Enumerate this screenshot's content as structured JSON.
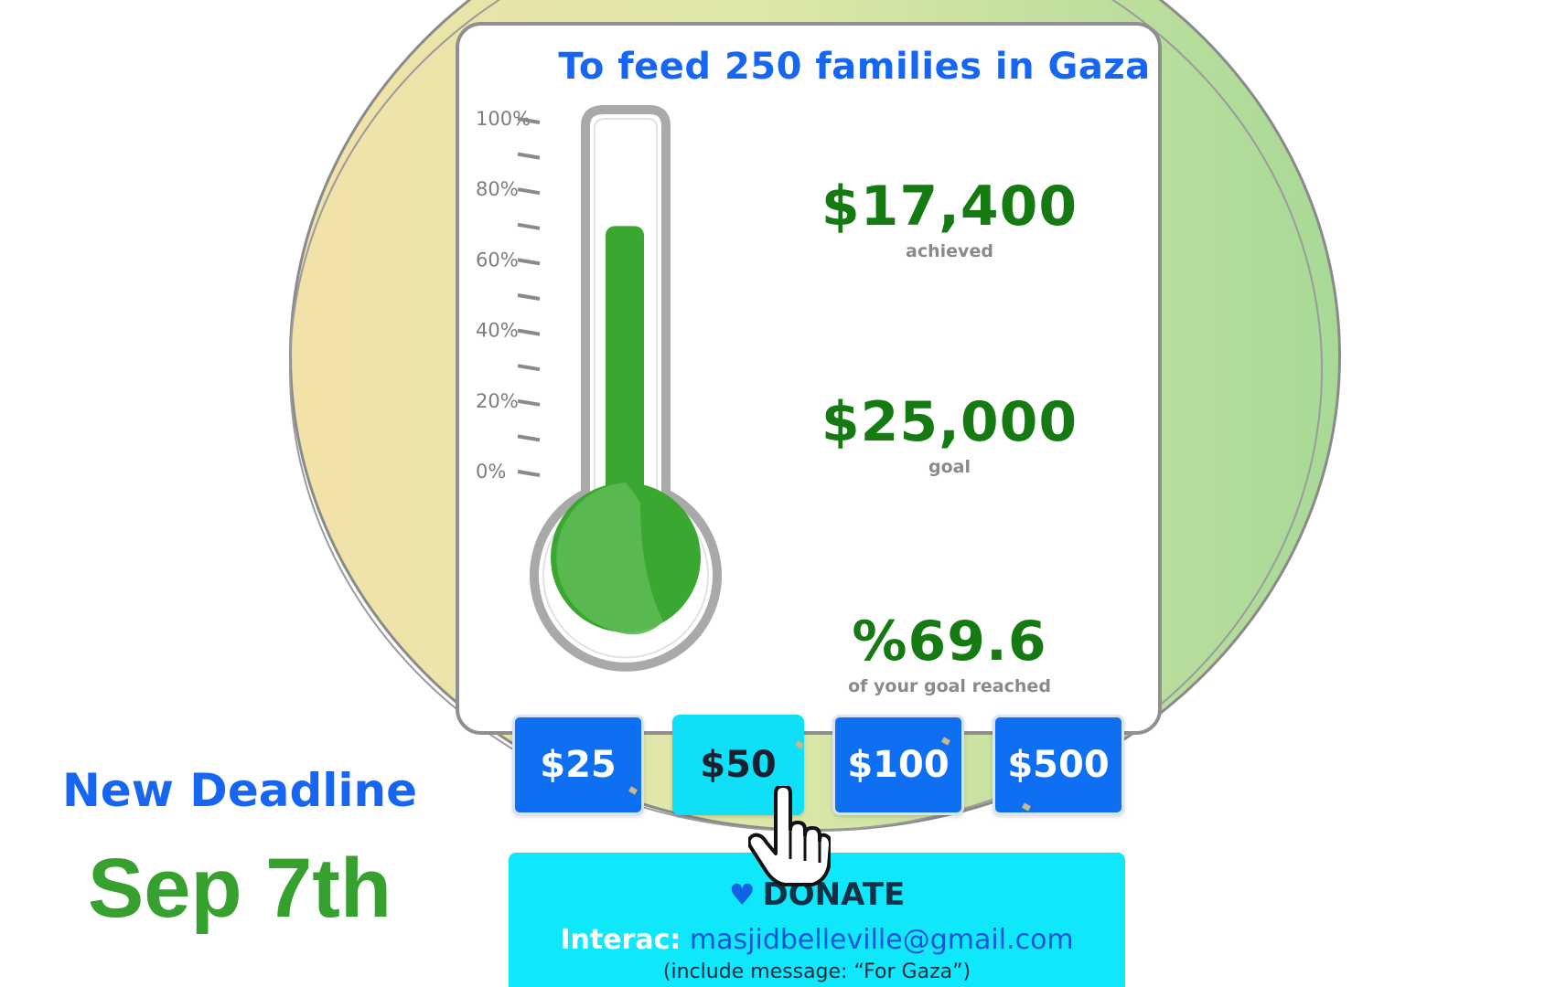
{
  "campaign": {
    "title": "To feed 250 families in Gaza"
  },
  "thermometer": {
    "ticks": [
      "100%",
      "80%",
      "60%",
      "40%",
      "20%",
      "0%"
    ],
    "fill_percent": 69.6,
    "fill_color": "#3aa830",
    "bulb_color": "#5db954"
  },
  "stats": {
    "achieved_value": "$17,400",
    "achieved_caption": "achieved",
    "goal_value": "$25,000",
    "goal_caption": "goal",
    "percent_value": "%69.6",
    "percent_caption": "of your goal reached"
  },
  "amount_buttons": [
    {
      "label": "$25",
      "selected": false
    },
    {
      "label": "$50",
      "selected": true
    },
    {
      "label": "$100",
      "selected": false
    },
    {
      "label": "$500",
      "selected": false
    }
  ],
  "donate": {
    "label": "DONATE",
    "icon": "heart-icon",
    "interac_label": "Interac:",
    "interac_email": "masjidbelleville@gmail.com",
    "note": "(include message: “For Gaza”)"
  },
  "deadline": {
    "label": "New Deadline",
    "date": "Sep 7th"
  },
  "colors": {
    "brand_blue": "#1766f2",
    "green": "#157a12",
    "deadline_green": "#36a12f",
    "cyan": "#0fe8fb"
  }
}
